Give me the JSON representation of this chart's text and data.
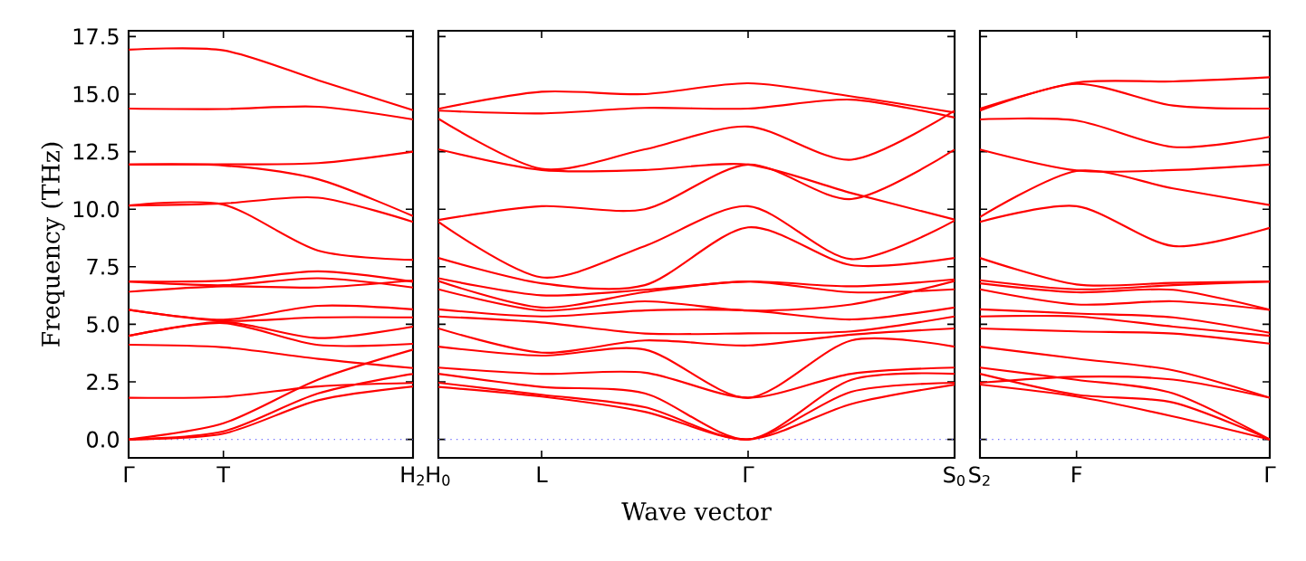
{
  "chart_data": [
    {
      "type": "line",
      "ylabel": "Frequency (THz)",
      "color": "#ff0000",
      "ylim": [
        -0.8,
        17.75
      ],
      "categories": [
        "Γ",
        "T",
        null,
        "H$_{2}$"
      ],
      "yticks": [
        {
          "value": 0,
          "label": "0.0"
        },
        {
          "value": 2.5,
          "label": "2.5"
        },
        {
          "value": 5,
          "label": "5.0"
        },
        {
          "value": 7.5,
          "label": "7.5"
        },
        {
          "value": 10,
          "label": "10.0"
        },
        {
          "value": 12.5,
          "label": "12.5"
        },
        {
          "value": 15,
          "label": "15.0"
        },
        {
          "value": 17.5,
          "label": "17.5"
        }
      ],
      "ref_lines": [
        {
          "axis": "y",
          "value": 0,
          "color": "#7070ff",
          "line_style": "dotted"
        }
      ],
      "series": [
        {
          "values": [
            0,
            0.25,
            1.7,
            2.3
          ]
        },
        {
          "values": [
            0,
            0.35,
            2.0,
            2.85
          ]
        },
        {
          "values": [
            0,
            0.7,
            2.6,
            3.9
          ]
        },
        {
          "values": [
            1.81,
            1.85,
            2.3,
            2.45
          ]
        },
        {
          "values": [
            4.11,
            4.0,
            3.5,
            3.1
          ]
        },
        {
          "values": [
            4.5,
            5.05,
            4.1,
            4.15
          ]
        },
        {
          "values": [
            4.5,
            5.1,
            4.4,
            4.9
          ]
        },
        {
          "values": [
            5.63,
            5.15,
            5.3,
            5.3
          ]
        },
        {
          "values": [
            5.63,
            5.2,
            5.8,
            5.65
          ]
        },
        {
          "values": [
            6.41,
            6.65,
            6.6,
            6.9
          ]
        },
        {
          "values": [
            6.86,
            6.7,
            7.0,
            6.6
          ]
        },
        {
          "values": [
            6.86,
            6.9,
            7.3,
            6.85
          ]
        },
        {
          "values": [
            10.16,
            10.2,
            8.2,
            7.8
          ]
        },
        {
          "values": [
            10.16,
            10.25,
            10.5,
            9.45
          ]
        },
        {
          "values": [
            11.94,
            11.9,
            11.3,
            9.7
          ]
        },
        {
          "values": [
            11.94,
            11.95,
            12.0,
            12.5
          ]
        },
        {
          "values": [
            14.37,
            14.35,
            14.45,
            13.9
          ]
        },
        {
          "values": [
            16.93,
            16.9,
            15.6,
            14.3
          ]
        }
      ]
    },
    {
      "type": "line",
      "xlabel": "Wave vector",
      "color": "#ff0000",
      "ylim": [
        -0.8,
        17.75
      ],
      "tick_labels": "x",
      "categories": [
        "H$_{0}$",
        "L",
        null,
        "Γ",
        null,
        "S$_{0}$"
      ],
      "yticks": [
        {
          "value": 0,
          "label": null
        },
        {
          "value": 2.5,
          "label": null
        },
        {
          "value": 5,
          "label": null
        },
        {
          "value": 7.5,
          "label": null
        },
        {
          "value": 10,
          "label": null
        },
        {
          "value": 12.5,
          "label": null
        },
        {
          "value": 15,
          "label": null
        },
        {
          "value": 17.5,
          "label": null
        }
      ],
      "ref_lines": [
        {
          "axis": "y",
          "value": 0,
          "color": "#7070ff",
          "line_style": "dotted"
        }
      ],
      "series": [
        {
          "values": [
            2.28,
            1.86,
            1.2,
            0,
            1.54,
            2.38
          ]
        },
        {
          "values": [
            2.46,
            1.94,
            1.4,
            0,
            2.07,
            2.46
          ]
        },
        {
          "values": [
            2.85,
            2.28,
            2.0,
            0,
            2.59,
            2.85
          ]
        },
        {
          "values": [
            3.12,
            2.85,
            2.9,
            1.81,
            2.85,
            3.12
          ]
        },
        {
          "values": [
            4.03,
            3.64,
            3.9,
            1.81,
            4.3,
            4.03
          ]
        },
        {
          "values": [
            4.82,
            3.77,
            4.3,
            4.08,
            4.55,
            4.82
          ]
        },
        {
          "values": [
            5.34,
            5.08,
            4.6,
            4.61,
            4.69,
            5.34
          ]
        },
        {
          "values": [
            5.65,
            5.34,
            5.6,
            5.6,
            5.21,
            5.73
          ]
        },
        {
          "values": [
            6.52,
            5.6,
            6.0,
            5.6,
            5.86,
            6.88
          ]
        },
        {
          "values": [
            6.88,
            5.73,
            6.4,
            6.86,
            6.39,
            6.52
          ]
        },
        {
          "values": [
            7.0,
            6.26,
            6.5,
            6.86,
            6.65,
            6.95
          ]
        },
        {
          "values": [
            7.88,
            6.78,
            6.7,
            9.21,
            7.57,
            7.88
          ]
        },
        {
          "values": [
            9.45,
            7.04,
            8.4,
            10.13,
            7.83,
            9.5
          ]
        },
        {
          "values": [
            9.53,
            10.13,
            10.0,
            11.94,
            10.44,
            12.59
          ]
        },
        {
          "values": [
            12.6,
            11.7,
            11.7,
            11.94,
            10.7,
            9.55
          ]
        },
        {
          "values": [
            13.93,
            11.75,
            12.6,
            13.59,
            12.15,
            14.28
          ]
        },
        {
          "values": [
            14.28,
            14.16,
            14.4,
            14.37,
            14.76,
            13.98
          ]
        },
        {
          "values": [
            14.36,
            15.1,
            15.0,
            15.47,
            14.9,
            14.2
          ]
        }
      ]
    },
    {
      "type": "line",
      "color": "#ff0000",
      "ylim": [
        -0.8,
        17.75
      ],
      "tick_labels": "x",
      "categories": [
        "S$_{2}$",
        "F",
        null,
        "Γ"
      ],
      "yticks": [
        {
          "value": 0,
          "label": null
        },
        {
          "value": 2.5,
          "label": null
        },
        {
          "value": 5,
          "label": null
        },
        {
          "value": 7.5,
          "label": null
        },
        {
          "value": 10,
          "label": null
        },
        {
          "value": 12.5,
          "label": null
        },
        {
          "value": 15,
          "label": null
        },
        {
          "value": 17.5,
          "label": null
        }
      ],
      "ref_lines": [
        {
          "axis": "y",
          "value": 0,
          "color": "#7070ff",
          "line_style": "dotted"
        }
      ],
      "series": [
        {
          "values": [
            2.38,
            1.86,
            1.0,
            0
          ]
        },
        {
          "values": [
            2.85,
            1.94,
            1.6,
            0
          ]
        },
        {
          "values": [
            3.12,
            2.59,
            2.0,
            0
          ]
        },
        {
          "values": [
            2.46,
            2.72,
            2.6,
            1.81
          ]
        },
        {
          "values": [
            4.03,
            3.51,
            3.0,
            1.81
          ]
        },
        {
          "values": [
            4.82,
            4.69,
            4.6,
            4.16
          ]
        },
        {
          "values": [
            5.34,
            5.34,
            4.9,
            4.5
          ]
        },
        {
          "values": [
            5.65,
            5.47,
            5.3,
            4.63
          ]
        },
        {
          "values": [
            6.52,
            5.86,
            6.0,
            5.63
          ]
        },
        {
          "values": [
            6.78,
            6.39,
            6.5,
            5.63
          ]
        },
        {
          "values": [
            6.91,
            6.52,
            6.7,
            6.86
          ]
        },
        {
          "values": [
            7.88,
            6.73,
            6.8,
            6.86
          ]
        },
        {
          "values": [
            9.45,
            10.13,
            8.4,
            9.19
          ]
        },
        {
          "values": [
            9.66,
            11.66,
            10.9,
            10.18
          ]
        },
        {
          "values": [
            12.59,
            11.68,
            11.7,
            11.94
          ]
        },
        {
          "values": [
            13.9,
            13.85,
            12.7,
            13.14
          ]
        },
        {
          "values": [
            14.28,
            15.44,
            14.5,
            14.37
          ]
        },
        {
          "values": [
            14.36,
            15.5,
            15.55,
            15.73
          ]
        }
      ]
    }
  ]
}
